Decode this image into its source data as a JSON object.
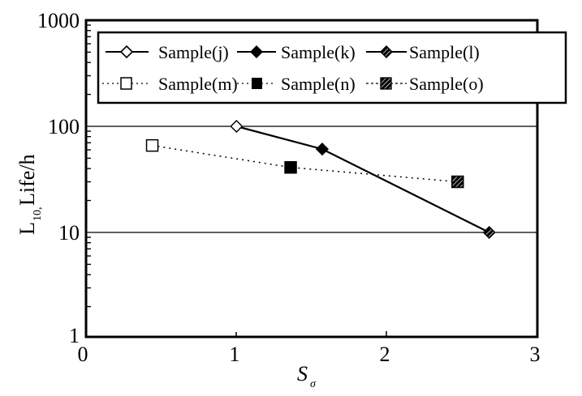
{
  "chart_data": {
    "type": "line",
    "title": "",
    "xlabel": "S",
    "xlabel_subscript": "σ",
    "ylabel": "L",
    "ylabel_subscript": "10,",
    "ylabel_suffix": " Life/h",
    "xlim": [
      0,
      3
    ],
    "ylim": [
      1,
      1000
    ],
    "yscale": "log",
    "xticks": [
      0,
      1,
      2,
      3
    ],
    "xtick_labels": [
      "0",
      "1",
      "2",
      "3"
    ],
    "yticks": [
      1,
      10,
      100,
      1000
    ],
    "ytick_labels": [
      "1",
      "10",
      "100",
      "1000"
    ],
    "grid": {
      "horizontal_at": [
        10,
        100
      ],
      "vertical": false
    },
    "legend": {
      "position": "top",
      "columns": 3,
      "entries": [
        "Sample(j)",
        "Sample(k)",
        "Sample(l)",
        "Sample(m)",
        "Sample(n)",
        "Sample(o)"
      ]
    },
    "series": [
      {
        "group": "solid",
        "name": "Sample(j)",
        "marker": "diamond-open",
        "line": "solid",
        "x": 1.0,
        "y": 100
      },
      {
        "group": "solid",
        "name": "Sample(k)",
        "marker": "diamond-filled",
        "line": "solid",
        "x": 1.57,
        "y": 61
      },
      {
        "group": "solid",
        "name": "Sample(l)",
        "marker": "diamond-hatched",
        "line": "solid",
        "x": 2.68,
        "y": 10
      },
      {
        "group": "dotted",
        "name": "Sample(m)",
        "marker": "square-open",
        "line": "dotted",
        "x": 0.44,
        "y": 66
      },
      {
        "group": "dotted",
        "name": "Sample(n)",
        "marker": "square-filled",
        "line": "dotted",
        "x": 1.36,
        "y": 41
      },
      {
        "group": "dotted",
        "name": "Sample(o)",
        "marker": "square-hatched",
        "line": "dotted",
        "x": 2.47,
        "y": 30
      }
    ],
    "connecting_lines": [
      {
        "style": "solid",
        "through": [
          "Sample(j)",
          "Sample(k)",
          "Sample(l)"
        ]
      },
      {
        "style": "dotted",
        "through": [
          "Sample(m)",
          "Sample(n)",
          "Sample(o)"
        ]
      }
    ]
  },
  "legend": {
    "row1": [
      {
        "label": "Sample(j)",
        "marker": "diamond-open",
        "icon": "open-diamond-icon"
      },
      {
        "label": "Sample(k)",
        "marker": "diamond-filled",
        "icon": "filled-diamond-icon"
      },
      {
        "label": "Sample(l)",
        "marker": "diamond-hatched",
        "icon": "hatched-diamond-icon"
      }
    ],
    "row2": [
      {
        "label": "Sample(m)",
        "marker": "square-open",
        "icon": "open-square-icon"
      },
      {
        "label": "Sample(n)",
        "marker": "square-filled",
        "icon": "filled-square-icon"
      },
      {
        "label": "Sample(o)",
        "marker": "square-hatched",
        "icon": "hatched-square-icon"
      }
    ]
  },
  "axes": {
    "y_tick_labels": [
      "1000",
      "100",
      "10",
      "1"
    ],
    "x_tick_labels": [
      "0",
      "1",
      "2",
      "3"
    ],
    "x_title": "S",
    "x_title_sub": "σ",
    "y_title_main": "L",
    "y_title_sub": "10,",
    "y_title_rest": " Life/h"
  },
  "colors": {
    "ink": "#000000",
    "background": "#ffffff"
  }
}
